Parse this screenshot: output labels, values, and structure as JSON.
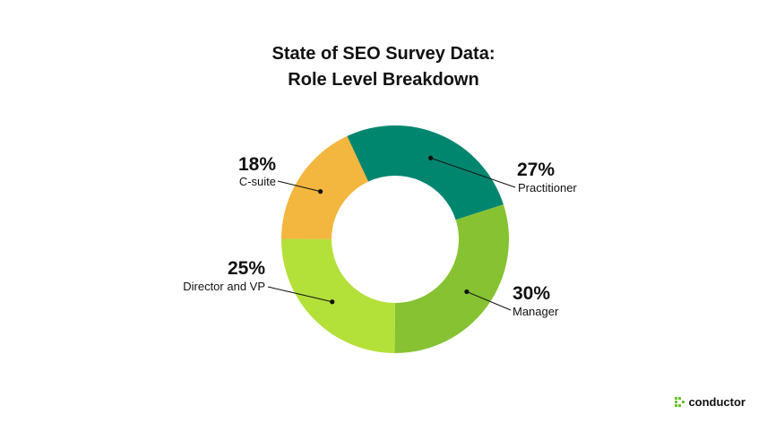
{
  "title": {
    "line1": "State of SEO Survey Data:",
    "line2": "Role Level Breakdown"
  },
  "brand": {
    "name": "conductor"
  },
  "chart_data": {
    "type": "pie",
    "variant": "donut",
    "title": "State of SEO Survey Data: Role Level Breakdown",
    "slices": [
      {
        "label": "Practitioner",
        "value": 27,
        "value_label": "27%",
        "color": "#00856f"
      },
      {
        "label": "Manager",
        "value": 30,
        "value_label": "30%",
        "color": "#86c232"
      },
      {
        "label": "Director and VP",
        "value": 25,
        "value_label": "25%",
        "color": "#b4e03a"
      },
      {
        "label": "C-suite",
        "value": 18,
        "value_label": "18%",
        "color": "#f3b63f"
      }
    ]
  }
}
